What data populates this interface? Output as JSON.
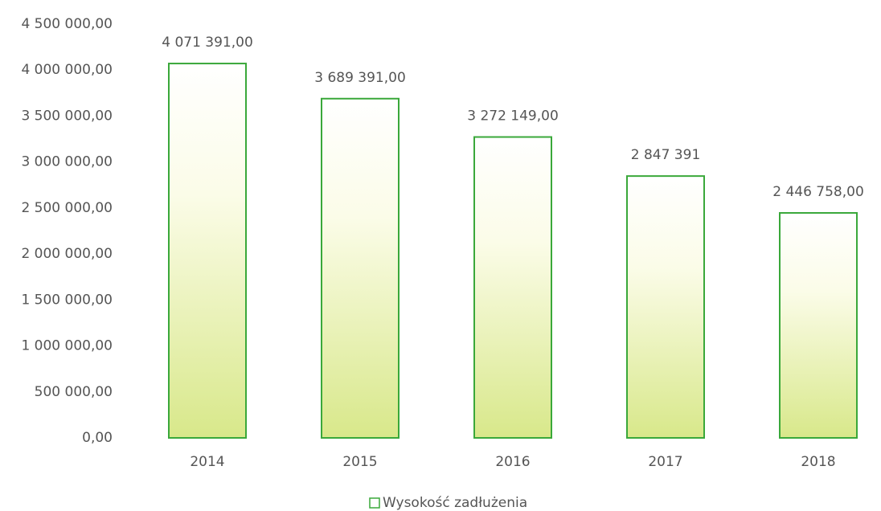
{
  "chart_data": {
    "type": "bar",
    "categories": [
      "2014",
      "2015",
      "2016",
      "2017",
      "2018"
    ],
    "series": [
      {
        "name": "Wysokość zadłużenia",
        "color": "#3aa83a",
        "values": [
          4071391,
          3689391,
          3272149,
          2847391,
          2446758
        ],
        "value_labels": [
          "4 071 391,00",
          "3 689 391,00",
          "3 272 149,00",
          "2 847 391",
          "2 446 758,00"
        ]
      }
    ],
    "ylim": [
      0,
      4500000
    ],
    "yticks": [
      {
        "value": 0,
        "label": "0,00"
      },
      {
        "value": 500000,
        "label": "500 000,00"
      },
      {
        "value": 1000000,
        "label": "1 000 000,00"
      },
      {
        "value": 1500000,
        "label": "1 500 000,00"
      },
      {
        "value": 2000000,
        "label": "2 000 000,00"
      },
      {
        "value": 2500000,
        "label": "2 500 000,00"
      },
      {
        "value": 3000000,
        "label": "3 000 000,00"
      },
      {
        "value": 3500000,
        "label": "3 500 000,00"
      },
      {
        "value": 4000000,
        "label": "4 000 000,00"
      },
      {
        "value": 4500000,
        "label": "4 500 000,00"
      }
    ],
    "grid": false,
    "legend": "bottom"
  }
}
